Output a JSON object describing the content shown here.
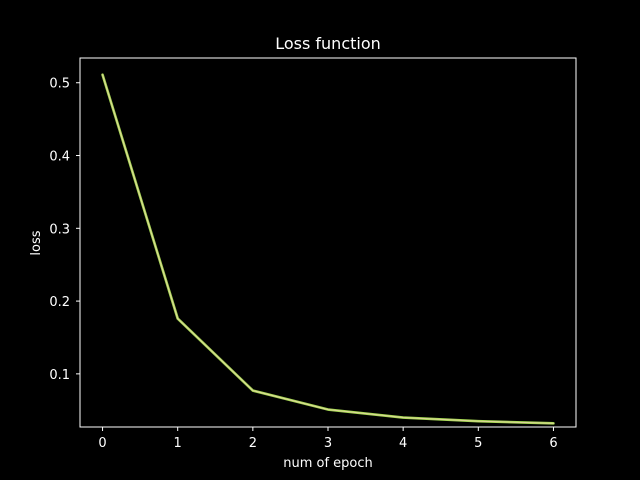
{
  "chart_data": {
    "type": "line",
    "title": "Loss function",
    "xlabel": "num of epoch",
    "ylabel": "loss",
    "xlim": [
      -0.3,
      6.3
    ],
    "ylim": [
      0.027,
      0.534
    ],
    "x_ticks": [
      0,
      1,
      2,
      3,
      4,
      5,
      6
    ],
    "y_ticks": [
      0.1,
      0.2,
      0.3,
      0.4,
      0.5
    ],
    "x_tick_labels": [
      "0",
      "1",
      "2",
      "3",
      "4",
      "5",
      "6"
    ],
    "y_tick_labels": [
      "0.1",
      "0.2",
      "0.3",
      "0.4",
      "0.5"
    ],
    "grid": false,
    "series": [
      {
        "x": [
          0,
          1,
          2,
          3,
          4,
          5,
          6
        ],
        "values": [
          0.511,
          0.176,
          0.077,
          0.051,
          0.04,
          0.035,
          0.032
        ]
      }
    ]
  },
  "colors": {
    "background": "#000000",
    "axes": "#ffffff",
    "text": "#ffffff",
    "line_outer": "#a6d854",
    "line_inner": "#e5d8a0"
  }
}
